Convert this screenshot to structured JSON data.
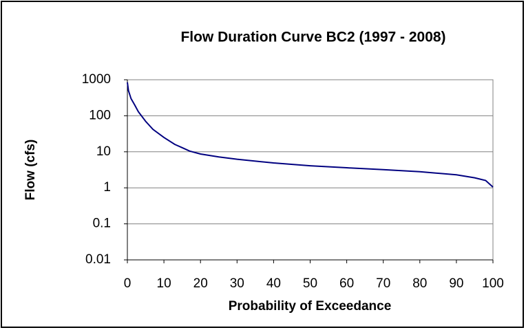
{
  "chart_data": {
    "type": "line",
    "title": "Flow Duration Curve BC2 (1997 - 2008)",
    "xlabel": "Probability of Exceedance",
    "ylabel": "Flow (cfs)",
    "series": [
      {
        "name": "Flow",
        "color": "#000080",
        "x": [
          0,
          0.3,
          1,
          2,
          3,
          5,
          7,
          10,
          13,
          15,
          17,
          20,
          25,
          30,
          40,
          50,
          60,
          70,
          80,
          90,
          95,
          98,
          100
        ],
        "values": [
          850,
          500,
          300,
          200,
          130,
          70,
          42,
          25,
          16,
          13,
          10.5,
          8.7,
          7.2,
          6.2,
          4.9,
          4.1,
          3.6,
          3.2,
          2.8,
          2.3,
          1.9,
          1.6,
          1.05
        ]
      }
    ],
    "xlim": [
      0,
      100
    ],
    "xticks": [
      0,
      10,
      20,
      30,
      40,
      50,
      60,
      70,
      80,
      90,
      100
    ],
    "ylim": [
      0.01,
      1000
    ],
    "yticks": [
      1000,
      100,
      10,
      1,
      0.1,
      0.01
    ],
    "ylog": true,
    "grid": true
  }
}
